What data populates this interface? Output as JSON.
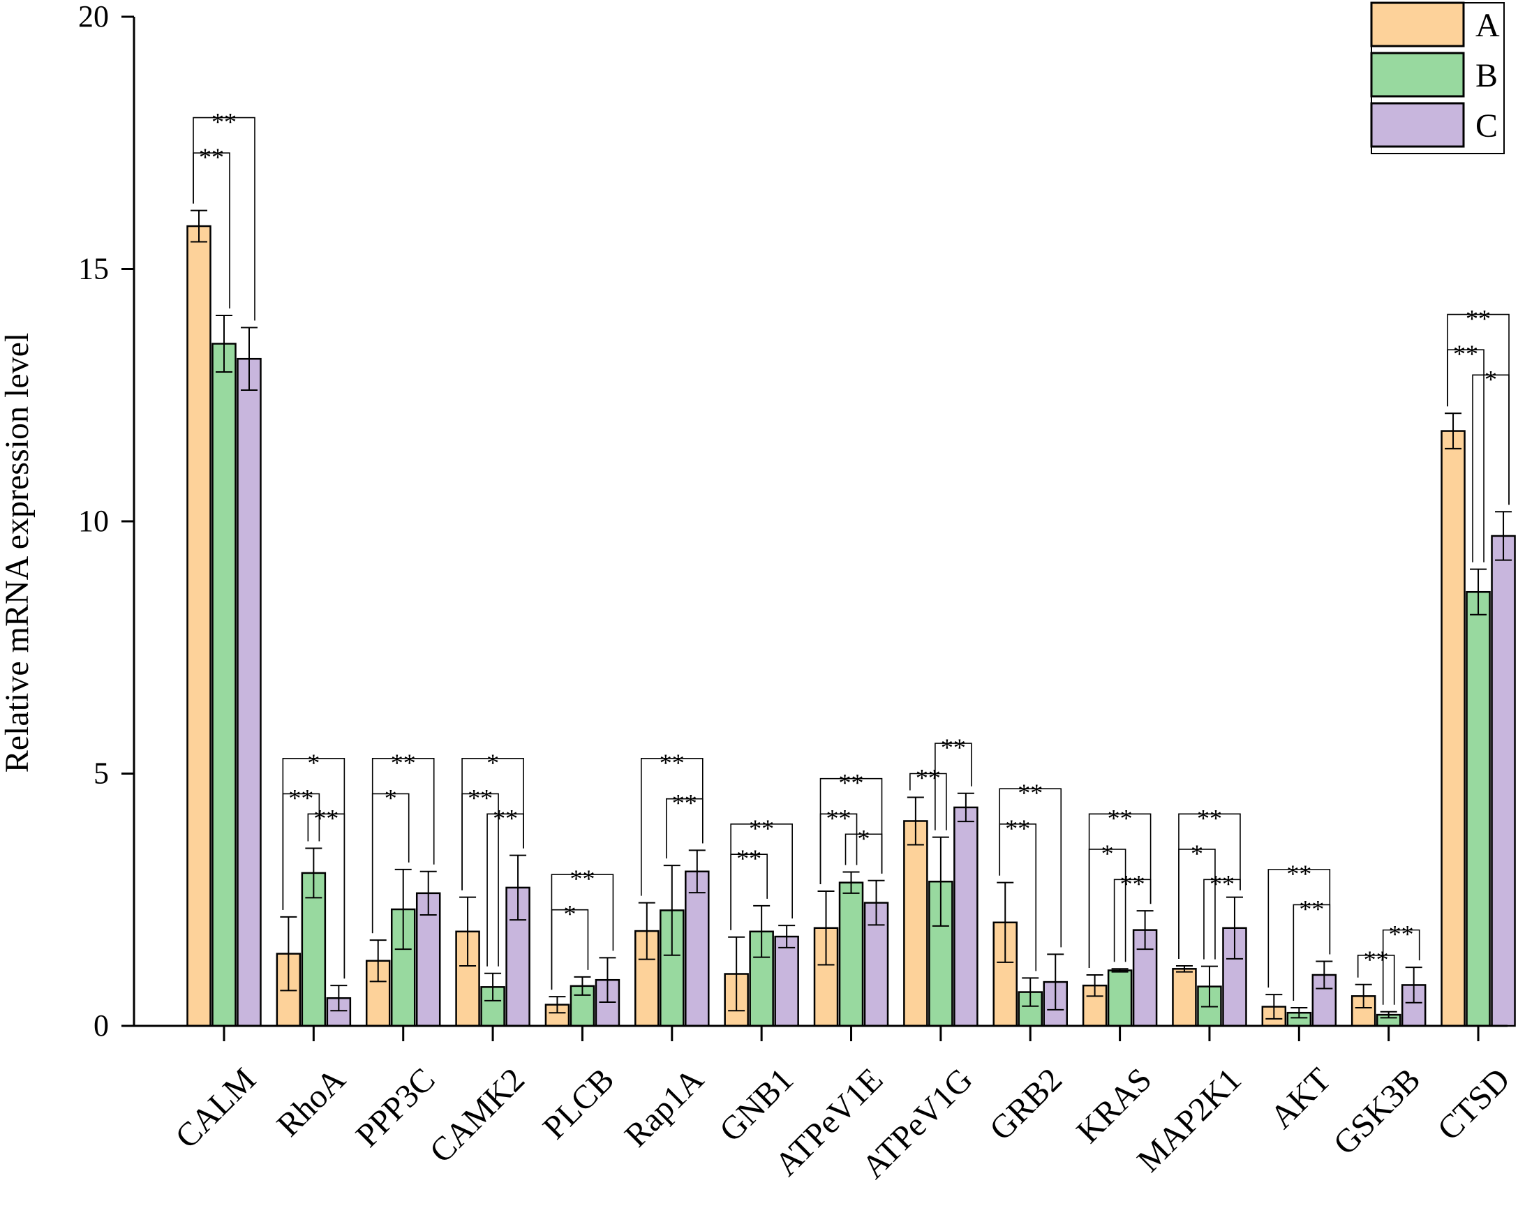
{
  "chart_data": {
    "type": "bar",
    "title": "",
    "xlabel": "",
    "ylabel": "Relative mRNA expression level",
    "ylim": [
      0,
      20
    ],
    "yticks": [
      "0",
      "5",
      "10",
      "15",
      "20"
    ],
    "grid": false,
    "legend_position": "top-right",
    "categories": [
      "CALM",
      "RhoA",
      "PPP3C",
      "CAMK2",
      "PLCB",
      "Rap1A",
      "GNB1",
      "ATPeV1E",
      "ATPeV1G",
      "GRB2",
      "KRAS",
      "MAP2K1",
      "AKT",
      "GSK3B",
      "CTSD"
    ],
    "series": [
      {
        "name": "A",
        "color": "#FDD29A",
        "values": [
          15.85,
          1.43,
          1.29,
          1.87,
          0.42,
          1.88,
          1.03,
          1.94,
          4.06,
          2.05,
          0.8,
          1.13,
          0.38,
          0.59,
          11.79
        ],
        "errors": [
          0.31,
          0.73,
          0.41,
          0.68,
          0.16,
          0.56,
          0.73,
          0.73,
          0.47,
          0.79,
          0.21,
          0.06,
          0.24,
          0.23,
          0.35
        ]
      },
      {
        "name": "B",
        "color": "#98D99F",
        "values": [
          13.52,
          3.03,
          2.31,
          0.77,
          0.79,
          2.29,
          1.87,
          2.84,
          2.86,
          0.67,
          1.1,
          0.78,
          0.26,
          0.22,
          8.6
        ],
        "errors": [
          0.56,
          0.49,
          0.79,
          0.27,
          0.18,
          0.89,
          0.51,
          0.21,
          0.88,
          0.28,
          0.03,
          0.4,
          0.1,
          0.06,
          0.45
        ]
      },
      {
        "name": "C",
        "color": "#C8B6DD",
        "values": [
          13.22,
          0.55,
          2.63,
          2.74,
          0.91,
          3.06,
          1.77,
          2.44,
          4.33,
          0.87,
          1.9,
          1.94,
          1.01,
          0.81,
          9.71
        ],
        "errors": [
          0.62,
          0.25,
          0.43,
          0.64,
          0.44,
          0.42,
          0.22,
          0.44,
          0.28,
          0.55,
          0.38,
          0.61,
          0.27,
          0.35,
          0.48
        ]
      }
    ],
    "significance": [
      {
        "category": "CALM",
        "pair": [
          "A",
          "B"
        ],
        "label": "**",
        "level": 17.3
      },
      {
        "category": "CALM",
        "pair": [
          "A",
          "C"
        ],
        "label": "**",
        "level": 18.0
      },
      {
        "category": "RhoA",
        "pair": [
          "A",
          "B"
        ],
        "label": "**",
        "level": 4.6
      },
      {
        "category": "RhoA",
        "pair": [
          "B",
          "C"
        ],
        "label": "**",
        "level": 4.2
      },
      {
        "category": "RhoA",
        "pair": [
          "A",
          "C"
        ],
        "label": "*",
        "level": 5.3
      },
      {
        "category": "PPP3C",
        "pair": [
          "A",
          "B"
        ],
        "label": "*",
        "level": 4.6
      },
      {
        "category": "PPP3C",
        "pair": [
          "A",
          "C"
        ],
        "label": "**",
        "level": 5.3
      },
      {
        "category": "CAMK2",
        "pair": [
          "A",
          "B"
        ],
        "label": "**",
        "level": 4.6
      },
      {
        "category": "CAMK2",
        "pair": [
          "B",
          "C"
        ],
        "label": "**",
        "level": 4.2
      },
      {
        "category": "CAMK2",
        "pair": [
          "A",
          "C"
        ],
        "label": "*",
        "level": 5.3
      },
      {
        "category": "PLCB",
        "pair": [
          "A",
          "B"
        ],
        "label": "*",
        "level": 2.3
      },
      {
        "category": "PLCB",
        "pair": [
          "A",
          "C"
        ],
        "label": "**",
        "level": 3.0
      },
      {
        "category": "Rap1A",
        "pair": [
          "B",
          "C"
        ],
        "label": "**",
        "level": 4.5
      },
      {
        "category": "Rap1A",
        "pair": [
          "A",
          "C"
        ],
        "label": "**",
        "level": 5.3
      },
      {
        "category": "GNB1",
        "pair": [
          "A",
          "B"
        ],
        "label": "**",
        "level": 3.4
      },
      {
        "category": "GNB1",
        "pair": [
          "A",
          "C"
        ],
        "label": "**",
        "level": 4.0
      },
      {
        "category": "ATPeV1E",
        "pair": [
          "A",
          "B"
        ],
        "label": "**",
        "level": 4.2
      },
      {
        "category": "ATPeV1E",
        "pair": [
          "B",
          "C"
        ],
        "label": "*",
        "level": 3.8
      },
      {
        "category": "ATPeV1E",
        "pair": [
          "A",
          "C"
        ],
        "label": "**",
        "level": 4.9
      },
      {
        "category": "ATPeV1G",
        "pair": [
          "A",
          "B"
        ],
        "label": "**",
        "level": 5.0
      },
      {
        "category": "ATPeV1G",
        "pair": [
          "B",
          "C"
        ],
        "label": "**",
        "level": 5.6
      },
      {
        "category": "GRB2",
        "pair": [
          "A",
          "B"
        ],
        "label": "**",
        "level": 4.0
      },
      {
        "category": "GRB2",
        "pair": [
          "A",
          "C"
        ],
        "label": "**",
        "level": 4.7
      },
      {
        "category": "KRAS",
        "pair": [
          "A",
          "B"
        ],
        "label": "*",
        "level": 3.5
      },
      {
        "category": "KRAS",
        "pair": [
          "B",
          "C"
        ],
        "label": "**",
        "level": 2.9
      },
      {
        "category": "KRAS",
        "pair": [
          "A",
          "C"
        ],
        "label": "**",
        "level": 4.2
      },
      {
        "category": "MAP2K1",
        "pair": [
          "A",
          "B"
        ],
        "label": "*",
        "level": 3.5
      },
      {
        "category": "MAP2K1",
        "pair": [
          "B",
          "C"
        ],
        "label": "**",
        "level": 2.9
      },
      {
        "category": "MAP2K1",
        "pair": [
          "A",
          "C"
        ],
        "label": "**",
        "level": 4.2
      },
      {
        "category": "AKT",
        "pair": [
          "B",
          "C"
        ],
        "label": "**",
        "level": 2.4
      },
      {
        "category": "AKT",
        "pair": [
          "A",
          "C"
        ],
        "label": "**",
        "level": 3.1
      },
      {
        "category": "GSK3B",
        "pair": [
          "A",
          "B"
        ],
        "label": "**",
        "level": 1.4
      },
      {
        "category": "GSK3B",
        "pair": [
          "B",
          "C"
        ],
        "label": "**",
        "level": 1.9
      },
      {
        "category": "CTSD",
        "pair": [
          "A",
          "B"
        ],
        "label": "**",
        "level": 13.4
      },
      {
        "category": "CTSD",
        "pair": [
          "B",
          "C"
        ],
        "label": "*",
        "level": 12.9
      },
      {
        "category": "CTSD",
        "pair": [
          "A",
          "C"
        ],
        "label": "**",
        "level": 14.1
      }
    ]
  }
}
